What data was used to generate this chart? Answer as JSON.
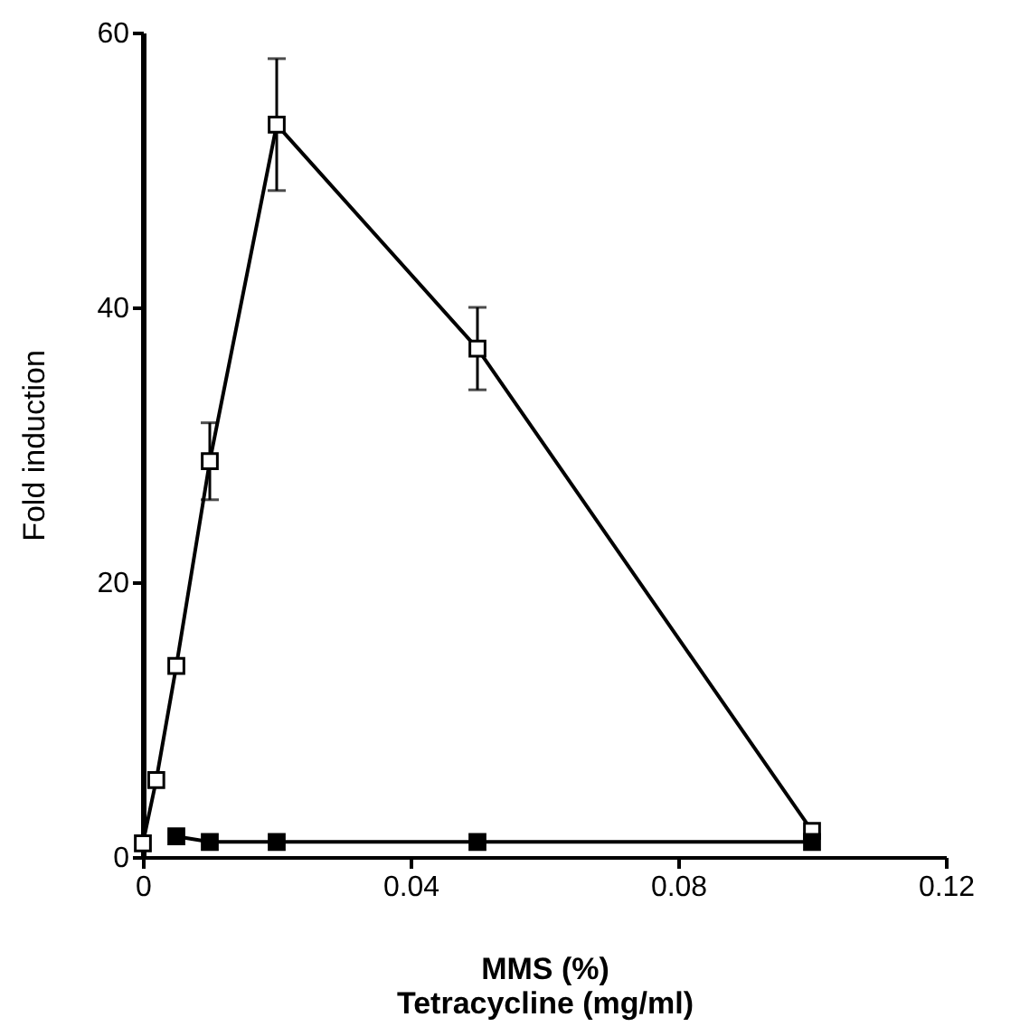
{
  "chart_data": {
    "type": "line",
    "xlabel": "MMS (%)\nTetracycline   (mg/ml)",
    "ylabel": "Fold induction",
    "xlim": [
      0,
      0.12
    ],
    "xticks": [
      0,
      0.04,
      0.08,
      0.12
    ],
    "ylim": [
      0,
      60
    ],
    "yticks": [
      0,
      20,
      40,
      60
    ],
    "grid": false,
    "legend": false,
    "marker": "square",
    "line_style": "solid",
    "series": [
      {
        "color": "#ffffff",
        "x": [
          0,
          0.002,
          0.005,
          0.01,
          0.02,
          0.05,
          0.1
        ],
        "values": [
          1,
          5.6,
          13.9,
          28.8,
          53.3,
          37,
          1.9
        ],
        "errors": [
          null,
          null,
          null,
          2.8,
          4.8,
          3,
          null
        ]
      },
      {
        "color": "#000000",
        "x": [
          0.005,
          0.01,
          0.02,
          0.05,
          0.1
        ],
        "values": [
          1.5,
          1.1,
          1.1,
          1.1,
          1.1
        ]
      }
    ]
  }
}
